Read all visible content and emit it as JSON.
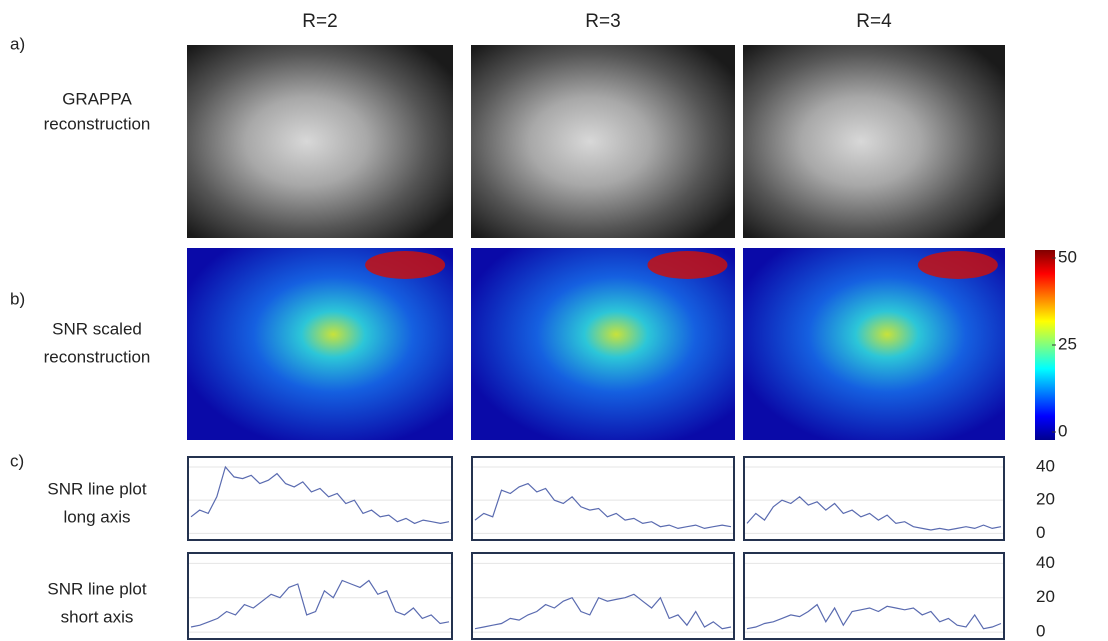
{
  "columns": [
    "R=2",
    "R=3",
    "R=4"
  ],
  "rows": [
    {
      "letter": "a)",
      "lines": [
        "GRAPPA",
        "reconstruction"
      ]
    },
    {
      "letter": "b)",
      "lines": [
        "SNR scaled",
        "reconstruction"
      ]
    },
    {
      "letter": "c)",
      "lines": [
        "SNR line plot",
        "long axis"
      ]
    },
    {
      "lines": [
        "SNR line plot",
        "short axis"
      ]
    }
  ],
  "colorbar": {
    "lim": [
      0,
      50
    ],
    "ticks": [
      0,
      25,
      50
    ]
  },
  "line_plots": {
    "ylim": [
      -4,
      46
    ],
    "yticks": [
      0,
      20,
      40
    ],
    "color": "#5a6bb0",
    "series": [
      [
        [
          10,
          14,
          12,
          22,
          40,
          34,
          33,
          35,
          30,
          32,
          36,
          30,
          28,
          31,
          25,
          27,
          22,
          24,
          18,
          20,
          12,
          14,
          10,
          11,
          7,
          9,
          6,
          8,
          7,
          6,
          7
        ],
        [
          8,
          12,
          10,
          26,
          24,
          28,
          30,
          25,
          27,
          20,
          18,
          22,
          16,
          14,
          15,
          10,
          12,
          8,
          9,
          6,
          7,
          4,
          5,
          3,
          4,
          5,
          3,
          4,
          5,
          4
        ],
        [
          6,
          12,
          8,
          16,
          20,
          18,
          22,
          17,
          19,
          14,
          18,
          12,
          14,
          10,
          12,
          8,
          11,
          6,
          7,
          4,
          3,
          2,
          3,
          2,
          3,
          4,
          3,
          5,
          3,
          4
        ]
      ],
      [
        [
          3,
          4,
          6,
          8,
          12,
          10,
          16,
          14,
          18,
          22,
          20,
          26,
          28,
          10,
          12,
          24,
          20,
          30,
          28,
          26,
          30,
          22,
          24,
          12,
          10,
          14,
          8,
          10,
          5,
          6
        ],
        [
          2,
          3,
          4,
          5,
          8,
          7,
          10,
          12,
          16,
          14,
          18,
          20,
          12,
          10,
          20,
          18,
          19,
          20,
          22,
          18,
          14,
          20,
          8,
          10,
          4,
          12,
          3,
          6,
          2,
          3
        ],
        [
          2,
          3,
          5,
          6,
          8,
          10,
          9,
          12,
          16,
          6,
          14,
          4,
          12,
          13,
          14,
          12,
          15,
          14,
          13,
          14,
          10,
          12,
          6,
          8,
          4,
          3,
          10,
          2,
          3,
          5
        ]
      ]
    ]
  }
}
